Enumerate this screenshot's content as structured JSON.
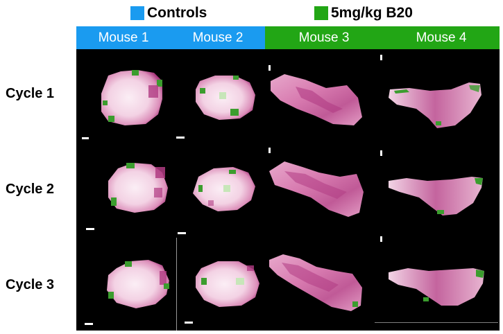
{
  "legend": {
    "controls": {
      "label": "Controls",
      "color": "#1a9bf0"
    },
    "treated": {
      "label": "5mg/kg B20",
      "color": "#22a615"
    }
  },
  "columns": [
    {
      "label": "Mouse 1",
      "group": "controls"
    },
    {
      "label": "Mouse 2",
      "group": "controls"
    },
    {
      "label": "Mouse 3",
      "group": "treated"
    },
    {
      "label": "Mouse 4",
      "group": "treated"
    }
  ],
  "rows": [
    {
      "label": "Cycle 1"
    },
    {
      "label": "Cycle 2"
    },
    {
      "label": "Cycle 3"
    }
  ],
  "colors": {
    "background": "#000000",
    "header_controls": "#1a9bf0",
    "header_treated": "#22a615",
    "tissue_light": "#f8e6f0",
    "tissue_mid": "#e6a3c8",
    "tissue_dark": "#b03c83",
    "tissue_green": "#3b9d2e",
    "scale_bar": "#ffffff"
  }
}
